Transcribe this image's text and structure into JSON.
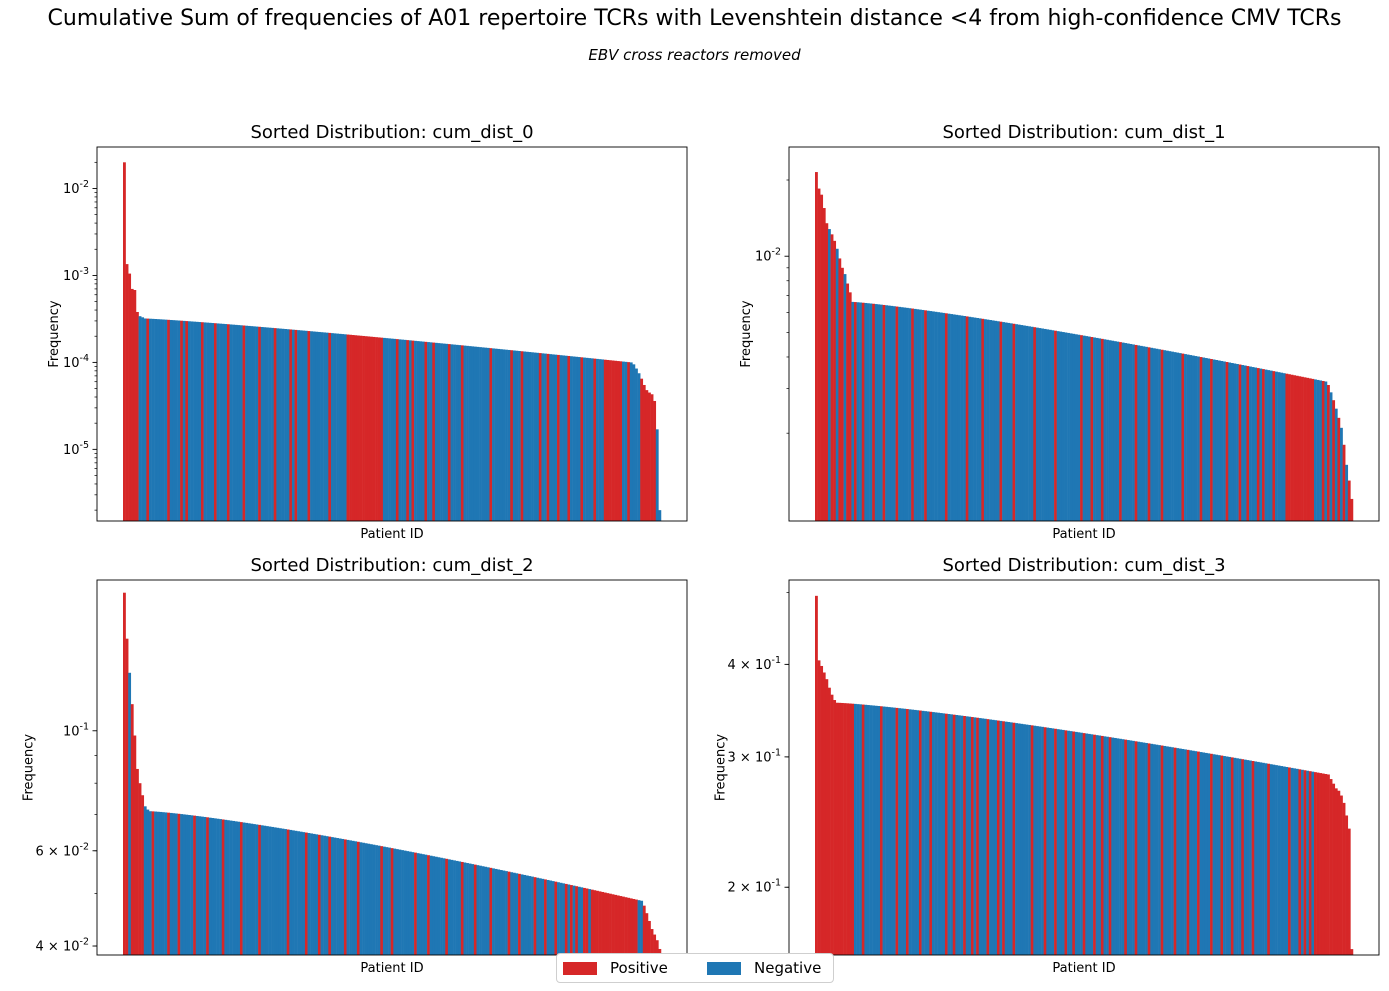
{
  "figure": {
    "title": "Cumulative Sum of frequencies of A01 repertoire TCRs with Levenshtein distance <4 from high-confidence CMV TCRs",
    "subtitle": "EBV cross reactors removed"
  },
  "legend": [
    {
      "label": "Positive",
      "color": "#d62728"
    },
    {
      "label": "Negative",
      "color": "#1f77b4"
    }
  ],
  "chart_data": [
    {
      "type": "bar",
      "title": "Sorted Distribution: cum_dist_0",
      "xlabel": "Patient ID",
      "ylabel": "Frequency",
      "yscale": "log",
      "ylim": [
        1.5e-06,
        0.03
      ],
      "yticks": [
        {
          "value": 1e-05,
          "label": "10^-5"
        },
        {
          "value": 0.0001,
          "label": "10^-4"
        },
        {
          "value": 0.001,
          "label": "10^-3"
        },
        {
          "value": 0.01,
          "label": "10^-2"
        }
      ],
      "bar_count": 207,
      "head": [
        0.02,
        0.00135,
        0.00105,
        0.0007,
        0.00068,
        0.00038,
        0.00034,
        0.00033
      ],
      "tail": [
        9.5e-05,
        8.5e-05,
        7.5e-05,
        6.5e-05,
        5.5e-05,
        4.8e-05,
        4.5e-05,
        4.3e-05,
        3.6e-05,
        1.7e-05,
        2e-06
      ],
      "body_range": [
        0.00032,
        0.0001
      ],
      "body_curve": 1.15,
      "positive_indices": [
        0,
        1,
        2,
        3,
        4,
        5,
        9,
        17,
        22,
        24,
        30,
        35,
        40,
        46,
        52,
        58,
        64,
        66,
        71,
        79,
        86,
        87,
        88,
        89,
        90,
        91,
        92,
        93,
        94,
        95,
        96,
        97,
        98,
        99,
        105,
        109,
        111,
        116,
        119,
        125,
        130,
        141,
        149,
        153,
        160,
        163,
        167,
        171,
        176,
        181,
        185,
        186,
        187,
        188,
        189,
        190,
        191,
        194,
        199,
        200,
        201,
        202,
        203,
        204
      ],
      "grid": false
    },
    {
      "type": "bar",
      "title": "Sorted Distribution: cum_dist_1",
      "xlabel": "Patient ID",
      "ylabel": "Frequency",
      "yscale": "log",
      "ylim": [
        0.0009,
        0.027
      ],
      "yticks": [
        {
          "value": 0.01,
          "label": "10^-2"
        }
      ],
      "bar_count": 207,
      "head": [
        0.0215,
        0.0185,
        0.0175,
        0.0155,
        0.0135,
        0.0128,
        0.0122,
        0.0115,
        0.0107,
        0.0098,
        0.009,
        0.0085,
        0.0078,
        0.0072
      ],
      "tail": [
        0.0031,
        0.0029,
        0.0027,
        0.0025,
        0.0023,
        0.0021,
        0.0018,
        0.0015,
        0.0013,
        0.0011
      ],
      "body_range": [
        0.0066,
        0.0032
      ],
      "body_curve": 1.2,
      "positive_indices": [
        0,
        1,
        2,
        3,
        4,
        6,
        7,
        9,
        10,
        12,
        13,
        15,
        18,
        22,
        26,
        31,
        37,
        42,
        50,
        58,
        64,
        71,
        76,
        84,
        92,
        102,
        106,
        110,
        117,
        123,
        128,
        133,
        141,
        148,
        152,
        158,
        163,
        166,
        170,
        172,
        176,
        181,
        182,
        183,
        184,
        185,
        186,
        187,
        188,
        189,
        190,
        191,
        195,
        197,
        199,
        201,
        203,
        205,
        206
      ],
      "grid": false
    },
    {
      "type": "bar",
      "title": "Sorted Distribution: cum_dist_2",
      "xlabel": "Patient ID",
      "ylabel": "Frequency",
      "yscale": "log",
      "ylim": [
        0.0385,
        0.19
      ],
      "yticks": [
        {
          "value": 0.04,
          "label": "4 × 10^-2"
        },
        {
          "value": 0.06,
          "label": "6 × 10^-2"
        },
        {
          "value": 0.1,
          "label": "10^-1"
        }
      ],
      "bar_count": 207,
      "head": [
        0.18,
        0.148,
        0.128,
        0.112,
        0.098,
        0.085,
        0.08,
        0.076,
        0.0725,
        0.0715
      ],
      "tail": [
        0.0475,
        0.046,
        0.0445,
        0.043,
        0.042,
        0.041,
        0.0395
      ],
      "body_range": [
        0.071,
        0.0485
      ],
      "body_curve": 1.25,
      "positive_indices": [
        0,
        1,
        3,
        4,
        5,
        6,
        7,
        11,
        17,
        21,
        27,
        32,
        38,
        45,
        52,
        63,
        70,
        75,
        79,
        85,
        90,
        99,
        103,
        112,
        117,
        124,
        130,
        135,
        141,
        148,
        152,
        158,
        162,
        166,
        170,
        172,
        174,
        177,
        178,
        180,
        181,
        182,
        183,
        184,
        185,
        186,
        187,
        188,
        189,
        190,
        191,
        192,
        193,
        194,
        195,
        196,
        197,
        200,
        201,
        202,
        203,
        204,
        205,
        206
      ],
      "grid": false
    },
    {
      "type": "bar",
      "title": "Sorted Distribution: cum_dist_3",
      "xlabel": "Patient ID",
      "ylabel": "Frequency",
      "yscale": "log",
      "ylim": [
        0.162,
        0.52
      ],
      "yticks": [
        {
          "value": 0.2,
          "label": "2 × 10^-1"
        },
        {
          "value": 0.3,
          "label": "3 × 10^-1"
        },
        {
          "value": 0.4,
          "label": "4 × 10^-1"
        }
      ],
      "bar_count": 207,
      "head": [
        0.495,
        0.405,
        0.398,
        0.39,
        0.382,
        0.372,
        0.364,
        0.358
      ],
      "tail": [
        0.28,
        0.276,
        0.272,
        0.27,
        0.266,
        0.26,
        0.25,
        0.24,
        0.165
      ],
      "body_range": [
        0.355,
        0.284
      ],
      "body_curve": 1.25,
      "positive_indices": [
        0,
        1,
        2,
        3,
        4,
        5,
        6,
        7,
        8,
        9,
        10,
        11,
        12,
        13,
        14,
        18,
        25,
        31,
        35,
        40,
        44,
        50,
        53,
        57,
        60,
        62,
        66,
        70,
        72,
        76,
        83,
        88,
        92,
        96,
        99,
        103,
        107,
        110,
        113,
        119,
        123,
        128,
        133,
        138,
        143,
        147,
        152,
        156,
        160,
        164,
        168,
        174,
        182,
        186,
        188,
        190,
        192,
        193,
        194,
        195,
        196,
        197,
        198,
        199,
        200,
        201,
        202,
        203,
        204,
        205,
        206
      ],
      "grid": false
    }
  ]
}
